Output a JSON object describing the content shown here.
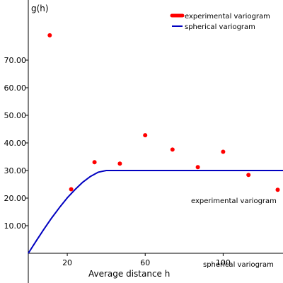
{
  "chart_data": {
    "type": "scatter",
    "xlabel": "Average distance h",
    "ylabel": "g(h)",
    "xlim": [
      0,
      130
    ],
    "ylim": [
      0,
      80
    ],
    "x_ticks": [
      20,
      60,
      100
    ],
    "x_tick_labels": [
      "20",
      "60",
      "100"
    ],
    "y_ticks": [
      10,
      20,
      30,
      40,
      50,
      60,
      70
    ],
    "y_tick_labels": [
      "10.00",
      "20.00",
      "30.00",
      "40.00",
      "50.00",
      "60.00",
      "70.00"
    ],
    "grid": false,
    "legend_position": "top-right",
    "legend": [
      "experimental variogram",
      "spherical variogram"
    ],
    "series": [
      {
        "name": "experimental variogram",
        "kind": "points",
        "color": "#ff0000",
        "x": [
          11,
          22,
          34,
          47,
          60,
          74,
          87,
          100,
          113,
          128
        ],
        "y": [
          79,
          23.2,
          33,
          32.5,
          42.8,
          37.6,
          31.2,
          36.8,
          28.4,
          23
        ]
      },
      {
        "name": "spherical variogram",
        "kind": "line",
        "color": "#0000c0",
        "x": [
          0,
          4,
          8,
          12,
          16,
          20,
          24,
          28,
          32,
          36,
          40,
          131
        ],
        "y": [
          0,
          4.4,
          8.7,
          12.8,
          16.6,
          20.1,
          23.1,
          25.8,
          27.9,
          29.4,
          30,
          30
        ]
      }
    ],
    "annotations": [
      "experimental variogram",
      "spherical variogram"
    ]
  }
}
